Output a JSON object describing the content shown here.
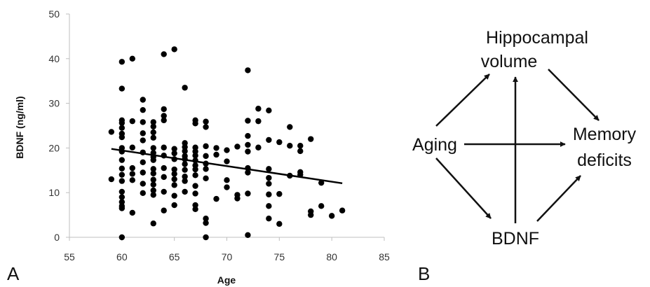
{
  "chart_data": {
    "type": "scatter",
    "xlabel": "Age",
    "ylabel": "BDNF (ng/ml)",
    "xlim": [
      55,
      85
    ],
    "ylim": [
      0,
      50
    ],
    "xticks": [
      "55",
      "60",
      "65",
      "70",
      "75",
      "80",
      "85"
    ],
    "yticks": [
      "0",
      "10",
      "20",
      "30",
      "40",
      "50"
    ],
    "grid": false,
    "trendline": {
      "x": [
        59,
        81
      ],
      "y": [
        19.8,
        12.1
      ]
    },
    "points": [
      [
        60,
        39.3
      ],
      [
        60,
        33.3
      ],
      [
        60,
        26.2
      ],
      [
        60,
        25.6
      ],
      [
        60,
        24.5
      ],
      [
        60,
        23.2
      ],
      [
        60,
        22.4
      ],
      [
        60,
        20
      ],
      [
        60,
        19.2
      ],
      [
        60,
        17.3
      ],
      [
        60,
        15.4
      ],
      [
        60,
        14
      ],
      [
        60,
        12.6
      ],
      [
        60,
        10.2
      ],
      [
        60,
        9
      ],
      [
        60,
        7.9
      ],
      [
        60,
        7
      ],
      [
        60,
        6.5
      ],
      [
        60,
        0
      ],
      [
        59,
        23.6
      ],
      [
        59,
        13
      ],
      [
        61,
        40
      ],
      [
        61,
        26
      ],
      [
        61,
        20.1
      ],
      [
        61,
        15.5
      ],
      [
        61,
        14.2
      ],
      [
        61,
        12.8
      ],
      [
        61,
        5.5
      ],
      [
        62,
        30.8
      ],
      [
        62,
        28.5
      ],
      [
        62,
        25.8
      ],
      [
        62,
        23.3
      ],
      [
        62,
        21.7
      ],
      [
        62,
        19
      ],
      [
        62,
        16.8
      ],
      [
        62,
        14.5
      ],
      [
        62,
        12
      ],
      [
        62,
        9.9
      ],
      [
        63,
        25.8
      ],
      [
        63,
        24.8
      ],
      [
        63,
        23.5
      ],
      [
        63,
        22.3
      ],
      [
        63,
        20
      ],
      [
        63,
        18.9
      ],
      [
        63,
        18
      ],
      [
        63,
        17.3
      ],
      [
        63,
        15.3
      ],
      [
        63,
        14.3
      ],
      [
        63,
        12.9
      ],
      [
        63,
        11.8
      ],
      [
        63,
        10.5
      ],
      [
        63,
        9.5
      ],
      [
        63,
        3.1
      ],
      [
        64,
        41
      ],
      [
        64,
        28.7
      ],
      [
        64,
        27.2
      ],
      [
        64,
        26.2
      ],
      [
        64,
        20.1
      ],
      [
        64,
        18.3
      ],
      [
        64,
        15.5
      ],
      [
        64,
        13.5
      ],
      [
        64,
        10.2
      ],
      [
        64,
        6
      ],
      [
        65,
        42.1
      ],
      [
        65,
        19.8
      ],
      [
        65,
        18.8
      ],
      [
        65,
        17.5
      ],
      [
        65,
        15.2
      ],
      [
        65,
        14.2
      ],
      [
        65,
        13
      ],
      [
        65,
        11.7
      ],
      [
        65,
        9.3
      ],
      [
        65,
        7.2
      ],
      [
        66,
        33.5
      ],
      [
        66,
        21.1
      ],
      [
        66,
        20.2
      ],
      [
        66,
        19.3
      ],
      [
        66,
        18.2
      ],
      [
        66,
        17.5
      ],
      [
        66,
        16.4
      ],
      [
        66,
        15.1
      ],
      [
        66,
        13.6
      ],
      [
        66,
        12.6
      ],
      [
        66,
        10.2
      ],
      [
        67,
        26.2
      ],
      [
        67,
        25.5
      ],
      [
        67,
        20.1
      ],
      [
        67,
        19.2
      ],
      [
        67,
        18.3
      ],
      [
        67,
        17.2
      ],
      [
        67,
        16.1
      ],
      [
        67,
        15.2
      ],
      [
        67,
        13.9
      ],
      [
        67,
        11.5
      ],
      [
        67,
        9.8
      ],
      [
        67,
        7.2
      ],
      [
        67,
        6.3
      ],
      [
        68,
        25.9
      ],
      [
        68,
        24.7
      ],
      [
        68,
        20.4
      ],
      [
        68,
        18.2
      ],
      [
        68,
        16.5
      ],
      [
        68,
        15.3
      ],
      [
        68,
        13.2
      ],
      [
        68,
        4.2
      ],
      [
        68,
        3.2
      ],
      [
        68,
        0
      ],
      [
        69,
        20
      ],
      [
        69,
        18.5
      ],
      [
        69,
        8.6
      ],
      [
        70,
        19.5
      ],
      [
        70,
        17
      ],
      [
        70,
        12.8
      ],
      [
        70,
        11.2
      ],
      [
        71,
        20.3
      ],
      [
        71,
        9.5
      ],
      [
        71,
        8.7
      ],
      [
        72,
        37.4
      ],
      [
        72,
        26.1
      ],
      [
        72,
        22.7
      ],
      [
        72,
        20.7
      ],
      [
        72,
        19.2
      ],
      [
        72,
        15.5
      ],
      [
        72,
        14.5
      ],
      [
        72,
        9.8
      ],
      [
        72,
        0.5
      ],
      [
        73,
        28.8
      ],
      [
        73,
        26
      ],
      [
        73,
        20.1
      ],
      [
        74,
        28.4
      ],
      [
        74,
        21.8
      ],
      [
        74,
        15.3
      ],
      [
        74,
        13.3
      ],
      [
        74,
        12
      ],
      [
        74,
        9.6
      ],
      [
        74,
        7
      ],
      [
        74,
        4.2
      ],
      [
        75,
        21.3
      ],
      [
        75,
        9.7
      ],
      [
        75,
        3
      ],
      [
        76,
        24.7
      ],
      [
        76,
        20.5
      ],
      [
        76,
        13.8
      ],
      [
        77,
        20.5
      ],
      [
        77,
        19.3
      ],
      [
        77,
        14.6
      ],
      [
        77,
        14
      ],
      [
        78,
        22
      ],
      [
        78,
        5.8
      ],
      [
        78,
        5
      ],
      [
        79,
        12.2
      ],
      [
        79,
        7
      ],
      [
        80,
        4.8
      ],
      [
        81,
        6
      ]
    ]
  },
  "panels": {
    "a_label": "A",
    "b_label": "B"
  },
  "diagram": {
    "nodes": {
      "hippocampal_line1": "Hippocampal",
      "hippocampal_line2": "volume",
      "aging": "Aging",
      "memory_line1": "Memory",
      "memory_line2": "deficits",
      "bdnf": "BDNF"
    }
  }
}
